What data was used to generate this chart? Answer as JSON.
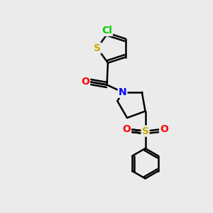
{
  "background_color": "#ebebeb",
  "bond_color": "#000000",
  "bond_width": 1.8,
  "atom_colors": {
    "Cl": "#00cc00",
    "S_thio": "#ccaa00",
    "O_carbonyl": "#ff0000",
    "N": "#0000ff",
    "S_sulfonyl": "#ccaa00",
    "O_sulfonyl": "#ff0000"
  },
  "font_size": 10,
  "figsize": [
    3.0,
    3.0
  ],
  "dpi": 100,
  "xlim": [
    0,
    10
  ],
  "ylim": [
    0,
    10
  ]
}
